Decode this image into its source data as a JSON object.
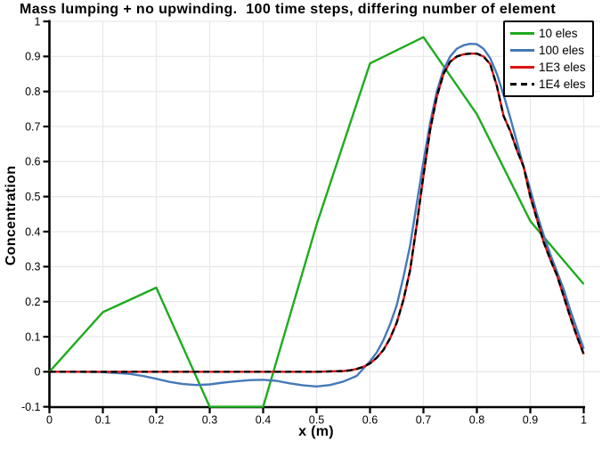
{
  "chart_data": {
    "type": "line",
    "title": "Mass lumping + no upwinding.  100 time steps, differing number of element",
    "xlabel": "x (m)",
    "ylabel": "Concentration",
    "xlim": [
      0,
      1
    ],
    "ylim": [
      -0.1,
      1
    ],
    "grid": true,
    "legend_position": "top-right",
    "xtick_values": [
      0,
      0.1,
      0.2,
      0.3,
      0.4,
      0.5,
      0.6,
      0.7,
      0.8,
      0.9,
      1
    ],
    "xtick_labels": [
      "0",
      "0.1",
      "0.2",
      "0.3",
      "0.4",
      "0.5",
      "0.6",
      "0.7",
      "0.8",
      "0.9",
      "1"
    ],
    "ytick_values": [
      -0.1,
      0,
      0.1,
      0.2,
      0.3,
      0.4,
      0.5,
      0.6,
      0.7,
      0.8,
      0.9,
      1
    ],
    "ytick_labels": [
      "-0.1",
      "0",
      "0.1",
      "0.2",
      "0.3",
      "0.4",
      "0.5",
      "0.6",
      "0.7",
      "0.8",
      "0.9",
      "1"
    ],
    "colors": {
      "grid": "#e9e9e9",
      "axis": "#000000",
      "background": "#ffffff"
    },
    "series": [
      {
        "name": "10 eles",
        "color": "#1fab1f",
        "style": "solid",
        "x": [
          0,
          0.1,
          0.2,
          0.3,
          0.4,
          0.5,
          0.6,
          0.7,
          0.8,
          0.9,
          1
        ],
        "y": [
          0,
          0.17,
          0.24,
          -0.1,
          -0.1,
          0.42,
          0.88,
          0.955,
          0.735,
          0.43,
          0.25
        ]
      },
      {
        "name": "100 eles",
        "color": "#4579b8",
        "style": "solid",
        "x": [
          0,
          0.05,
          0.1,
          0.15,
          0.175,
          0.2,
          0.225,
          0.25,
          0.275,
          0.3,
          0.325,
          0.35,
          0.375,
          0.4,
          0.425,
          0.45,
          0.475,
          0.5,
          0.525,
          0.55,
          0.575,
          0.6,
          0.6125,
          0.625,
          0.6375,
          0.65,
          0.6625,
          0.675,
          0.6875,
          0.7,
          0.7125,
          0.725,
          0.7375,
          0.75,
          0.7625,
          0.775,
          0.7875,
          0.8,
          0.8125,
          0.825,
          0.8375,
          0.85,
          0.8625,
          0.875,
          0.8875,
          0.9,
          0.9125,
          0.925,
          0.9375,
          0.95,
          0.9625,
          0.975,
          0.9875,
          1
        ],
        "y": [
          0,
          0,
          -0.001,
          -0.006,
          -0.012,
          -0.02,
          -0.029,
          -0.035,
          -0.038,
          -0.036,
          -0.031,
          -0.027,
          -0.024,
          -0.023,
          -0.026,
          -0.033,
          -0.039,
          -0.042,
          -0.038,
          -0.028,
          -0.012,
          0.03,
          0.055,
          0.09,
          0.135,
          0.19,
          0.27,
          0.36,
          0.48,
          0.6,
          0.71,
          0.8,
          0.862,
          0.9,
          0.922,
          0.932,
          0.936,
          0.935,
          0.922,
          0.895,
          0.85,
          0.79,
          0.725,
          0.655,
          0.585,
          0.52,
          0.45,
          0.39,
          0.335,
          0.285,
          0.235,
          0.175,
          0.12,
          0.065
        ]
      },
      {
        "name": "1E3 eles",
        "color": "#dc1414",
        "style": "solid",
        "x": [
          0,
          0.1,
          0.2,
          0.3,
          0.4,
          0.5,
          0.55,
          0.5625,
          0.575,
          0.5875,
          0.6,
          0.6125,
          0.625,
          0.6375,
          0.65,
          0.6625,
          0.675,
          0.6875,
          0.7,
          0.7125,
          0.725,
          0.7375,
          0.75,
          0.7625,
          0.775,
          0.7875,
          0.8,
          0.8125,
          0.825,
          0.8375,
          0.85,
          0.8625,
          0.875,
          0.8875,
          0.9,
          0.9125,
          0.925,
          0.9375,
          0.95,
          0.9625,
          0.975,
          0.9875,
          1
        ],
        "y": [
          0,
          0,
          0,
          0,
          0,
          0,
          0.002,
          0.004,
          0.008,
          0.014,
          0.024,
          0.04,
          0.062,
          0.095,
          0.14,
          0.205,
          0.29,
          0.42,
          0.56,
          0.69,
          0.785,
          0.85,
          0.885,
          0.9,
          0.906,
          0.908,
          0.908,
          0.9,
          0.878,
          0.815,
          0.73,
          0.687,
          0.632,
          0.585,
          0.5,
          0.435,
          0.37,
          0.32,
          0.275,
          0.215,
          0.155,
          0.1,
          0.05
        ]
      },
      {
        "name": "1E4 eles",
        "color": "#000000",
        "style": "dashed",
        "x": [
          0,
          0.1,
          0.2,
          0.3,
          0.4,
          0.5,
          0.55,
          0.5625,
          0.575,
          0.5875,
          0.6,
          0.6125,
          0.625,
          0.6375,
          0.65,
          0.6625,
          0.675,
          0.6875,
          0.7,
          0.7125,
          0.725,
          0.7375,
          0.75,
          0.7625,
          0.775,
          0.7875,
          0.8,
          0.8125,
          0.825,
          0.8375,
          0.85,
          0.8625,
          0.875,
          0.8875,
          0.9,
          0.9125,
          0.925,
          0.9375,
          0.95,
          0.9625,
          0.975,
          0.9875,
          1
        ],
        "y": [
          0,
          0,
          0,
          0,
          0,
          0,
          0.002,
          0.004,
          0.008,
          0.014,
          0.024,
          0.04,
          0.062,
          0.095,
          0.14,
          0.205,
          0.29,
          0.42,
          0.56,
          0.69,
          0.785,
          0.85,
          0.885,
          0.9,
          0.906,
          0.908,
          0.908,
          0.9,
          0.878,
          0.815,
          0.73,
          0.687,
          0.632,
          0.585,
          0.5,
          0.435,
          0.37,
          0.32,
          0.275,
          0.215,
          0.155,
          0.1,
          0.05
        ]
      }
    ]
  }
}
